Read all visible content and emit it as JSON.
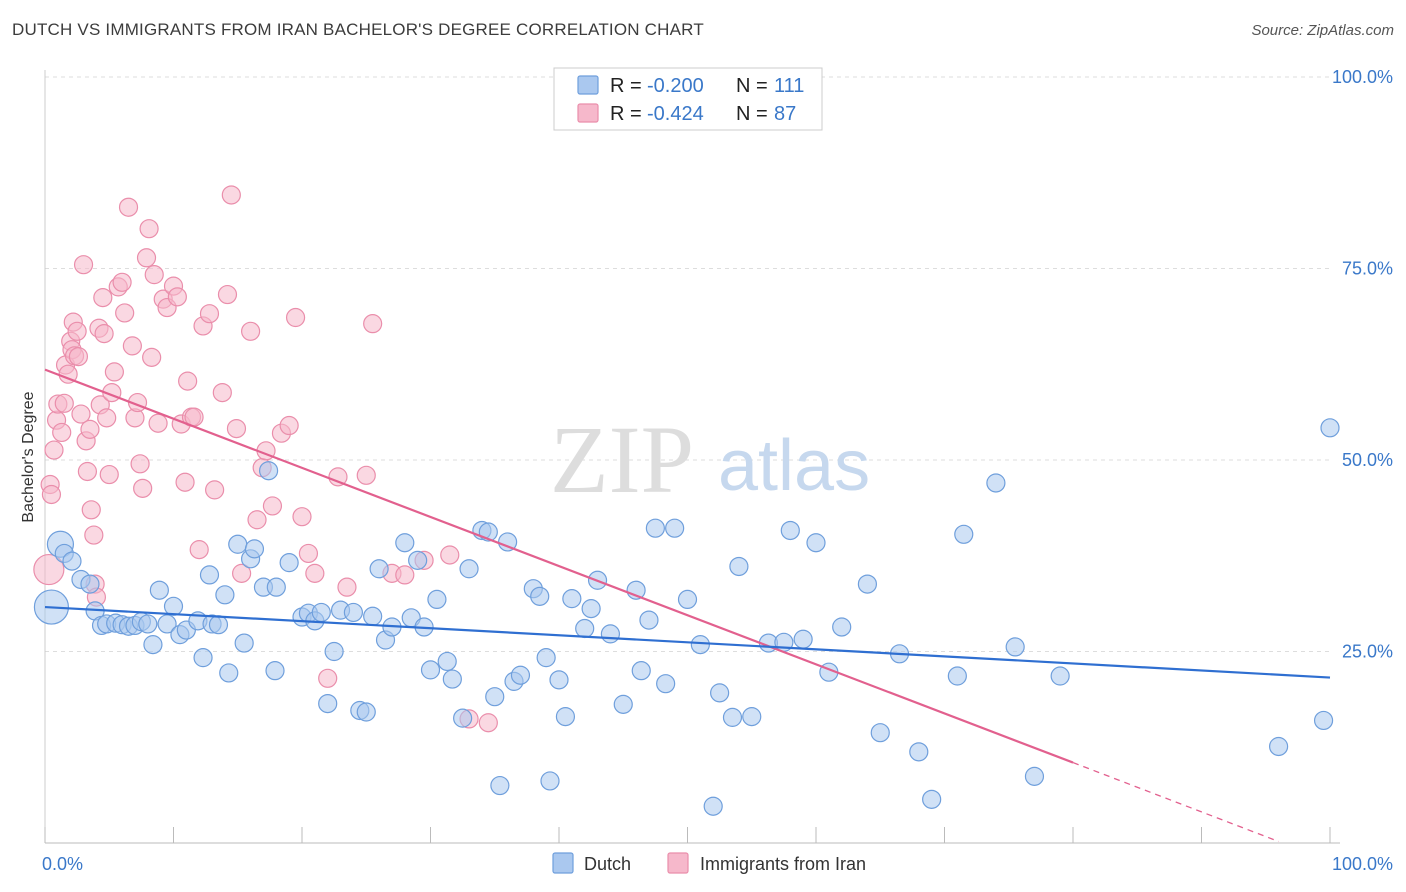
{
  "title": "DUTCH VS IMMIGRANTS FROM IRAN BACHELOR'S DEGREE CORRELATION CHART",
  "source": "Source: ZipAtlas.com",
  "watermark": {
    "zip": "ZIP",
    "atlas": "atlas"
  },
  "colors": {
    "dutch_fill": "#aac8ef",
    "dutch_stroke": "#6f9fdc",
    "dutch_line": "#2f6fd1",
    "iran_fill": "#f6b8cb",
    "iran_stroke": "#ea8eab",
    "iran_line": "#e2608e",
    "tick": "#3a78c9",
    "grid": "#dddddd"
  },
  "stats": {
    "r_label": "R =",
    "n_label": "N =",
    "dutch": {
      "r": "-0.200",
      "n": "111"
    },
    "iran": {
      "r": "-0.424",
      "n": "87"
    }
  },
  "chart_data": {
    "type": "scatter",
    "xlabel": "",
    "ylabel": "Bachelor's Degree",
    "xlim": [
      0,
      100
    ],
    "ylim": [
      0,
      100
    ],
    "x_tick_labels": {
      "left": "0.0%",
      "right": "100.0%"
    },
    "y_tick_labels": [
      "25.0%",
      "50.0%",
      "75.0%",
      "100.0%"
    ],
    "y_ticks": [
      25,
      50,
      75,
      100
    ],
    "grid": true,
    "legend_position": "bottom-center",
    "series": [
      {
        "name": "Dutch",
        "trend": {
          "x": [
            0,
            100
          ],
          "y": [
            30.8,
            21.6
          ]
        },
        "points": [
          [
            0.5,
            30.8
          ],
          [
            1.2,
            39
          ],
          [
            1.5,
            37.8
          ],
          [
            2.1,
            36.8
          ],
          [
            2.8,
            34.4
          ],
          [
            3.5,
            33.8
          ],
          [
            3.9,
            30.3
          ],
          [
            4.4,
            28.4
          ],
          [
            4.8,
            28.6
          ],
          [
            5.5,
            28.7
          ],
          [
            6,
            28.5
          ],
          [
            6.5,
            28.3
          ],
          [
            7,
            28.4
          ],
          [
            7.5,
            28.9
          ],
          [
            8,
            28.6
          ],
          [
            8.4,
            25.9
          ],
          [
            8.9,
            33
          ],
          [
            9.5,
            28.6
          ],
          [
            10,
            30.9
          ],
          [
            10.5,
            27.2
          ],
          [
            11,
            27.8
          ],
          [
            11.9,
            29
          ],
          [
            12.3,
            24.2
          ],
          [
            12.8,
            35
          ],
          [
            13,
            28.6
          ],
          [
            13.5,
            28.5
          ],
          [
            14,
            32.4
          ],
          [
            14.3,
            22.2
          ],
          [
            15,
            39
          ],
          [
            15.5,
            26.1
          ],
          [
            16,
            37.1
          ],
          [
            16.3,
            38.4
          ],
          [
            17,
            33.4
          ],
          [
            17.4,
            48.6
          ],
          [
            17.9,
            22.5
          ],
          [
            18,
            33.4
          ],
          [
            19,
            36.6
          ],
          [
            20,
            29.5
          ],
          [
            20.5,
            30
          ],
          [
            21,
            29
          ],
          [
            21.5,
            30.1
          ],
          [
            22,
            18.2
          ],
          [
            22.5,
            25
          ],
          [
            23,
            30.4
          ],
          [
            24,
            30.1
          ],
          [
            24.5,
            17.3
          ],
          [
            25,
            17.1
          ],
          [
            25.5,
            29.6
          ],
          [
            26,
            35.8
          ],
          [
            26.5,
            26.5
          ],
          [
            27,
            28.2
          ],
          [
            28,
            39.2
          ],
          [
            28.5,
            29.4
          ],
          [
            29,
            36.9
          ],
          [
            29.5,
            28.2
          ],
          [
            30,
            22.6
          ],
          [
            30.5,
            31.8
          ],
          [
            31.3,
            23.7
          ],
          [
            31.7,
            21.4
          ],
          [
            32.5,
            16.3
          ],
          [
            33,
            35.8
          ],
          [
            34,
            40.8
          ],
          [
            34.5,
            40.6
          ],
          [
            35,
            19.1
          ],
          [
            35.4,
            7.5
          ],
          [
            36,
            39.3
          ],
          [
            36.5,
            21.1
          ],
          [
            37,
            21.9
          ],
          [
            38,
            33.2
          ],
          [
            38.5,
            32.2
          ],
          [
            39,
            24.2
          ],
          [
            39.3,
            8.1
          ],
          [
            40,
            21.3
          ],
          [
            40.5,
            16.5
          ],
          [
            41,
            31.9
          ],
          [
            42,
            28
          ],
          [
            42.5,
            30.6
          ],
          [
            43,
            34.3
          ],
          [
            44,
            27.3
          ],
          [
            45,
            18.1
          ],
          [
            46,
            33
          ],
          [
            46.4,
            22.5
          ],
          [
            47,
            29.1
          ],
          [
            47.5,
            41.1
          ],
          [
            48.3,
            20.8
          ],
          [
            49,
            41.1
          ],
          [
            50,
            31.8
          ],
          [
            51,
            25.9
          ],
          [
            52,
            4.8
          ],
          [
            52.5,
            19.6
          ],
          [
            53.5,
            16.4
          ],
          [
            54,
            36.1
          ],
          [
            55,
            16.5
          ],
          [
            56.3,
            26.1
          ],
          [
            57.5,
            26.2
          ],
          [
            58,
            40.8
          ],
          [
            59,
            26.6
          ],
          [
            60,
            39.2
          ],
          [
            61,
            22.3
          ],
          [
            62,
            28.2
          ],
          [
            64,
            33.8
          ],
          [
            65,
            14.4
          ],
          [
            66.5,
            24.7
          ],
          [
            68,
            11.9
          ],
          [
            69,
            5.7
          ],
          [
            71,
            21.8
          ],
          [
            71.5,
            40.3
          ],
          [
            74,
            47
          ],
          [
            75.5,
            25.6
          ],
          [
            77,
            8.7
          ],
          [
            79,
            21.8
          ],
          [
            96,
            12.6
          ],
          [
            99.5,
            16
          ],
          [
            100,
            54.2
          ]
        ]
      },
      {
        "name": "Immigrants from Iran",
        "trend": {
          "x": [
            0,
            80
          ],
          "y": [
            61.8,
            10.5
          ]
        },
        "trend_ext": {
          "x": [
            80,
            96
          ],
          "y": [
            10.5,
            0.2
          ]
        },
        "points": [
          [
            0.3,
            35.7
          ],
          [
            0.4,
            46.8
          ],
          [
            0.5,
            45.5
          ],
          [
            0.7,
            51.3
          ],
          [
            0.9,
            55.2
          ],
          [
            1,
            57.3
          ],
          [
            1.3,
            53.6
          ],
          [
            1.5,
            57.4
          ],
          [
            1.6,
            62.4
          ],
          [
            1.8,
            61.2
          ],
          [
            2,
            65.5
          ],
          [
            2.1,
            64.4
          ],
          [
            2.2,
            68
          ],
          [
            2.3,
            63.6
          ],
          [
            2.5,
            66.8
          ],
          [
            2.6,
            63.5
          ],
          [
            2.8,
            56
          ],
          [
            3,
            75.5
          ],
          [
            3.2,
            52.5
          ],
          [
            3.3,
            48.5
          ],
          [
            3.5,
            54
          ],
          [
            3.6,
            43.5
          ],
          [
            3.8,
            40.2
          ],
          [
            3.9,
            33.8
          ],
          [
            4,
            32.1
          ],
          [
            4.2,
            67.2
          ],
          [
            4.3,
            57.2
          ],
          [
            4.5,
            71.2
          ],
          [
            4.6,
            66.5
          ],
          [
            4.8,
            55.5
          ],
          [
            5,
            48.1
          ],
          [
            5.2,
            58.8
          ],
          [
            5.4,
            61.5
          ],
          [
            5.7,
            72.6
          ],
          [
            6,
            73.2
          ],
          [
            6.2,
            69.2
          ],
          [
            6.5,
            83
          ],
          [
            6.8,
            64.9
          ],
          [
            7,
            55.5
          ],
          [
            7.2,
            57.5
          ],
          [
            7.4,
            49.5
          ],
          [
            7.6,
            46.3
          ],
          [
            7.9,
            76.4
          ],
          [
            8.1,
            80.2
          ],
          [
            8.3,
            63.4
          ],
          [
            8.5,
            74.2
          ],
          [
            8.8,
            54.8
          ],
          [
            9.2,
            71
          ],
          [
            9.5,
            69.9
          ],
          [
            10,
            72.7
          ],
          [
            10.3,
            71.3
          ],
          [
            10.6,
            54.7
          ],
          [
            10.9,
            47.1
          ],
          [
            11.1,
            60.3
          ],
          [
            11.4,
            55.6
          ],
          [
            11.6,
            55.6
          ],
          [
            12,
            38.3
          ],
          [
            12.3,
            67.5
          ],
          [
            12.8,
            69.1
          ],
          [
            13.2,
            46.1
          ],
          [
            13.8,
            58.8
          ],
          [
            14.2,
            71.6
          ],
          [
            14.5,
            84.6
          ],
          [
            14.9,
            54.1
          ],
          [
            15.3,
            35.2
          ],
          [
            16,
            66.8
          ],
          [
            16.5,
            42.2
          ],
          [
            16.9,
            49
          ],
          [
            17.2,
            51.2
          ],
          [
            17.7,
            44
          ],
          [
            18.4,
            53.5
          ],
          [
            19,
            54.5
          ],
          [
            19.5,
            68.6
          ],
          [
            20,
            42.6
          ],
          [
            20.5,
            37.8
          ],
          [
            21,
            35.2
          ],
          [
            22,
            21.5
          ],
          [
            22.8,
            47.8
          ],
          [
            23.5,
            33.4
          ],
          [
            25,
            48
          ],
          [
            25.5,
            67.8
          ],
          [
            27,
            35.2
          ],
          [
            28,
            35
          ],
          [
            29.5,
            36.9
          ],
          [
            31.5,
            37.6
          ],
          [
            33,
            16.2
          ],
          [
            34.5,
            15.7
          ]
        ]
      }
    ]
  },
  "legend": {
    "dutch": "Dutch",
    "iran": "Immigrants from Iran"
  }
}
